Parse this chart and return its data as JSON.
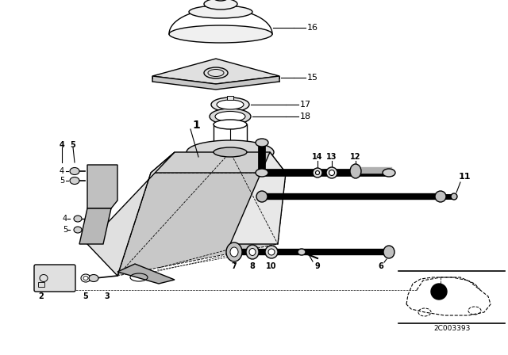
{
  "background_color": "#ffffff",
  "diagram_code": "2C003393",
  "line_color": "#000000",
  "line_width": 1.0,
  "label_fontsize": 8,
  "parts": [
    "1",
    "2",
    "3",
    "4",
    "5",
    "6",
    "7",
    "8",
    "9",
    "10",
    "11",
    "12",
    "13",
    "14",
    "15",
    "16",
    "17",
    "18"
  ]
}
